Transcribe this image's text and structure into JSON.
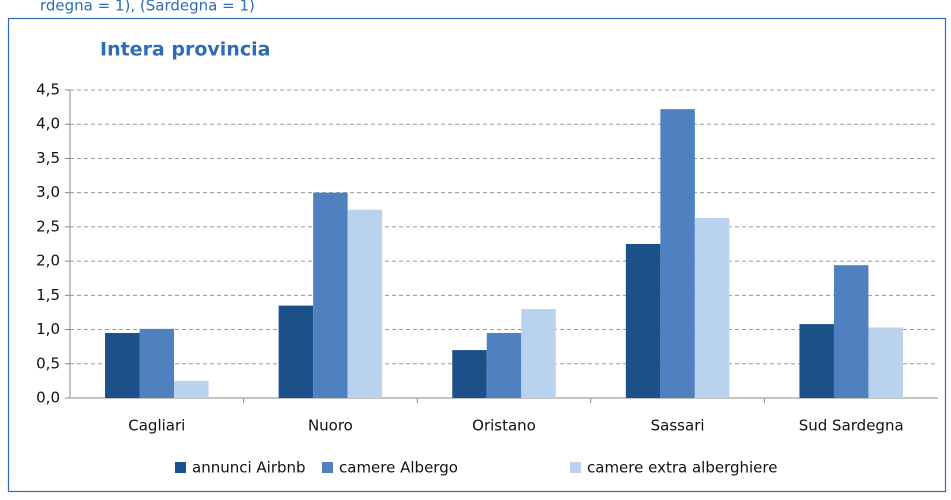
{
  "note": "rdegna = 1), (Sardegna = 1)",
  "chart_data": {
    "type": "bar",
    "title": "Intera provincia",
    "categories": [
      "Cagliari",
      "Nuoro",
      "Oristano",
      "Sassari",
      "Sud Sardegna"
    ],
    "series": [
      {
        "name": "annunci Airbnb",
        "color": "#1b5088",
        "values": [
          0.95,
          1.35,
          0.7,
          2.25,
          1.08
        ]
      },
      {
        "name": "camere Albergo",
        "color": "#4f81c0",
        "values": [
          1.01,
          3.0,
          0.95,
          4.22,
          1.94
        ]
      },
      {
        "name": "camere extra alberghiere",
        "color": "#b9d3ee",
        "values": [
          0.25,
          2.75,
          1.3,
          2.63,
          1.03
        ]
      }
    ],
    "ylim": [
      0,
      4.5
    ],
    "yticks": [
      {
        "value": 0,
        "label": "0,0"
      },
      {
        "value": 0.5,
        "label": "0,5"
      },
      {
        "value": 1,
        "label": "1,0"
      },
      {
        "value": 1.5,
        "label": "1,5"
      },
      {
        "value": 2,
        "label": "2,0"
      },
      {
        "value": 2.5,
        "label": "2,5"
      },
      {
        "value": 3,
        "label": "3,0"
      },
      {
        "value": 3.5,
        "label": "3,5"
      },
      {
        "value": 4,
        "label": "4,0"
      },
      {
        "value": 4.5,
        "label": "4,5"
      }
    ],
    "grid": true,
    "legend": "bottom"
  }
}
